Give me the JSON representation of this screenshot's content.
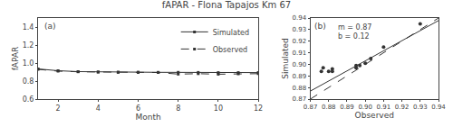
{
  "title": "fAPAR - Flona Tapajos Km 67",
  "chart_data": [
    {
      "type": "line",
      "x": [
        1,
        2,
        3,
        4,
        5,
        6,
        7,
        8,
        9,
        10,
        11,
        12
      ],
      "series": [
        {
          "name": "Simulated",
          "color": "#333333",
          "line_style": "solid",
          "marker": "square",
          "values": [
            0.935,
            0.915,
            0.905,
            0.901,
            0.899,
            0.899,
            0.897,
            0.897,
            0.896,
            0.894,
            0.894,
            0.894
          ]
        },
        {
          "name": "Observed",
          "color": "#333333",
          "line_style": "dashed",
          "marker": "square",
          "values": [
            0.93,
            0.91,
            0.903,
            0.9,
            0.897,
            0.895,
            0.895,
            0.877,
            0.882,
            0.876,
            0.88,
            0.882
          ]
        }
      ],
      "x_label": "Month",
      "y_label": "fAPAR",
      "xlim": [
        1,
        12
      ],
      "xticks": [
        2,
        4,
        6,
        8,
        10,
        12
      ],
      "ylim": [
        0.6,
        1.5
      ],
      "yticks": [
        0.6,
        0.8,
        {
          "value": 1,
          "label": "1.0"
        },
        1.2,
        1.4
      ],
      "grid": false,
      "legend": "upper right",
      "annotations": [
        "(a)"
      ]
    },
    {
      "type": "scatter",
      "series": [
        {
          "type": "scatter",
          "color": "#333333",
          "marker": "circle",
          "x": [
            0.93,
            0.91,
            0.903,
            0.9,
            0.897,
            0.895,
            0.895,
            0.877,
            0.882,
            0.876,
            0.88,
            0.882
          ],
          "values": [
            0.935,
            0.915,
            0.905,
            0.901,
            0.899,
            0.899,
            0.897,
            0.897,
            0.896,
            0.894,
            0.894,
            0.894
          ]
        },
        {
          "type": "line",
          "color": "#333333",
          "line_style": "dashed",
          "x": [
            0.87,
            0.94
          ],
          "values": [
            0.87,
            0.94
          ]
        },
        {
          "type": "line",
          "color": "#333333",
          "line_style": "solid",
          "x": [
            0.87,
            0.94
          ],
          "values": [
            0.8769,
            0.9378
          ]
        }
      ],
      "x_label": "Observed",
      "y_label": "Simulated",
      "xlim": [
        0.87,
        0.94
      ],
      "xticks": [
        0.87,
        0.88,
        0.89,
        {
          "value": 0.9,
          "label": "0.90"
        },
        0.91,
        0.92,
        0.93,
        0.94
      ],
      "ylim": [
        0.87,
        0.94
      ],
      "yticks": [
        0.87,
        0.88,
        0.89,
        {
          "value": 0.9,
          "label": "0.90"
        },
        0.91,
        0.92,
        0.93,
        0.94
      ],
      "grid": false,
      "annotations": [
        "(b)",
        "m = 0.87",
        "b = 0.12"
      ]
    }
  ]
}
